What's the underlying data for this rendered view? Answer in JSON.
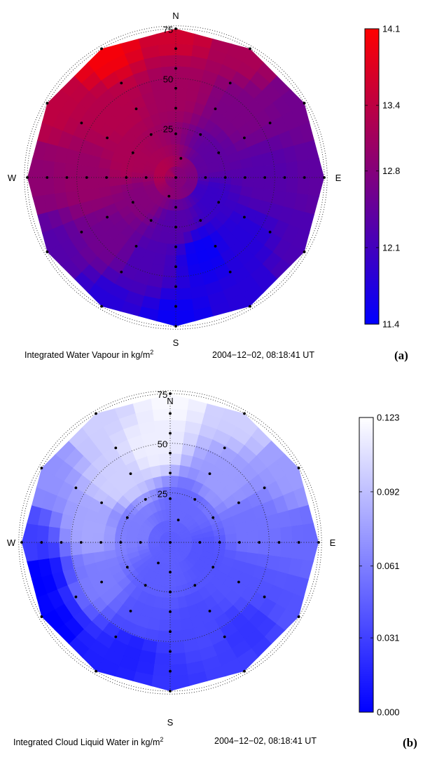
{
  "chart_data": [
    {
      "type": "polar-contour",
      "panel_label": "(a)",
      "caption": "Integrated Water Vapour in kg/m",
      "caption_sup": "2",
      "timestamp": "2004−12−02, 08:18:41 UT",
      "directions": {
        "north": "N",
        "east": "E",
        "south": "S",
        "west": "W"
      },
      "rings": [
        "25",
        "50",
        "75"
      ],
      "ring_values": [
        25,
        50,
        75
      ],
      "rmax": 75,
      "colorbar": {
        "min": 11.4,
        "max": 14.1,
        "ticks": [
          "14.1",
          "13.4",
          "12.8",
          "12.1",
          "11.4"
        ],
        "tick_values": [
          14.1,
          13.4,
          12.8,
          12.1,
          11.4
        ],
        "low_color": "#0000ff",
        "high_color": "#ff0000"
      },
      "field_samples": [
        {
          "az": 0,
          "r": 0,
          "v": 12.8
        },
        {
          "az": 0,
          "r": 75,
          "v": 13.6
        },
        {
          "az": 30,
          "r": 75,
          "v": 13.2
        },
        {
          "az": 60,
          "r": 75,
          "v": 12.6
        },
        {
          "az": 90,
          "r": 75,
          "v": 12.4
        },
        {
          "az": 120,
          "r": 75,
          "v": 12.2
        },
        {
          "az": 150,
          "r": 75,
          "v": 11.8
        },
        {
          "az": 180,
          "r": 75,
          "v": 11.5
        },
        {
          "az": 210,
          "r": 75,
          "v": 11.8
        },
        {
          "az": 240,
          "r": 75,
          "v": 12.3
        },
        {
          "az": 270,
          "r": 75,
          "v": 12.9
        },
        {
          "az": 300,
          "r": 75,
          "v": 13.4
        },
        {
          "az": 330,
          "r": 75,
          "v": 14.0
        },
        {
          "az": 0,
          "r": 45,
          "v": 13.1
        },
        {
          "az": 45,
          "r": 45,
          "v": 12.7
        },
        {
          "az": 90,
          "r": 45,
          "v": 12.3
        },
        {
          "az": 135,
          "r": 45,
          "v": 11.8
        },
        {
          "az": 160,
          "r": 40,
          "v": 11.5
        },
        {
          "az": 200,
          "r": 45,
          "v": 12.2
        },
        {
          "az": 225,
          "r": 45,
          "v": 12.6
        },
        {
          "az": 270,
          "r": 45,
          "v": 13.0
        },
        {
          "az": 315,
          "r": 45,
          "v": 13.3
        },
        {
          "az": 290,
          "r": 25,
          "v": 13.2
        },
        {
          "az": 300,
          "r": 5,
          "v": 13.3
        },
        {
          "az": 60,
          "r": 20,
          "v": 12.4
        },
        {
          "az": 120,
          "r": 20,
          "v": 12.0
        },
        {
          "az": 180,
          "r": 25,
          "v": 12.3
        },
        {
          "az": 240,
          "r": 20,
          "v": 12.8
        }
      ]
    },
    {
      "type": "polar-contour",
      "panel_label": "(b)",
      "caption": "Integrated Cloud Liquid Water in kg/m",
      "caption_sup": "2",
      "timestamp": "2004−12−02, 08:18:41 UT",
      "directions": {
        "north": "N",
        "east": "E",
        "south": "S",
        "west": "W"
      },
      "rings": [
        "25",
        "50",
        "75"
      ],
      "ring_values": [
        25,
        50,
        75
      ],
      "rmax": 75,
      "colorbar": {
        "min": 0.0,
        "max": 0.123,
        "ticks": [
          "0.123",
          "0.092",
          "0.061",
          "0.031",
          "0.000"
        ],
        "tick_values": [
          0.123,
          0.092,
          0.061,
          0.031,
          0.0
        ],
        "low_color": "#0000ff",
        "high_color": "#ffffff"
      },
      "field_samples": [
        {
          "az": 0,
          "r": 0,
          "v": 0.045
        },
        {
          "az": 0,
          "r": 75,
          "v": 0.12
        },
        {
          "az": 30,
          "r": 75,
          "v": 0.1
        },
        {
          "az": 60,
          "r": 75,
          "v": 0.075
        },
        {
          "az": 90,
          "r": 75,
          "v": 0.05
        },
        {
          "az": 120,
          "r": 75,
          "v": 0.04
        },
        {
          "az": 150,
          "r": 75,
          "v": 0.03
        },
        {
          "az": 180,
          "r": 75,
          "v": 0.025
        },
        {
          "az": 210,
          "r": 75,
          "v": 0.015
        },
        {
          "az": 235,
          "r": 75,
          "v": 0.0
        },
        {
          "az": 255,
          "r": 72,
          "v": 0.0
        },
        {
          "az": 270,
          "r": 75,
          "v": 0.03
        },
        {
          "az": 300,
          "r": 75,
          "v": 0.07
        },
        {
          "az": 330,
          "r": 75,
          "v": 0.1
        },
        {
          "az": 350,
          "r": 50,
          "v": 0.115
        },
        {
          "az": 320,
          "r": 40,
          "v": 0.1
        },
        {
          "az": 280,
          "r": 40,
          "v": 0.08
        },
        {
          "az": 240,
          "r": 40,
          "v": 0.06
        },
        {
          "az": 200,
          "r": 40,
          "v": 0.04
        },
        {
          "az": 160,
          "r": 45,
          "v": 0.035
        },
        {
          "az": 120,
          "r": 40,
          "v": 0.04
        },
        {
          "az": 80,
          "r": 40,
          "v": 0.055
        },
        {
          "az": 40,
          "r": 40,
          "v": 0.075
        },
        {
          "az": 20,
          "r": 20,
          "v": 0.05
        },
        {
          "az": 110,
          "r": 20,
          "v": 0.04
        },
        {
          "az": 200,
          "r": 20,
          "v": 0.045
        },
        {
          "az": 290,
          "r": 20,
          "v": 0.06
        },
        {
          "az": 200,
          "r": 60,
          "v": 0.015
        },
        {
          "az": 140,
          "r": 60,
          "v": 0.025
        }
      ]
    }
  ]
}
